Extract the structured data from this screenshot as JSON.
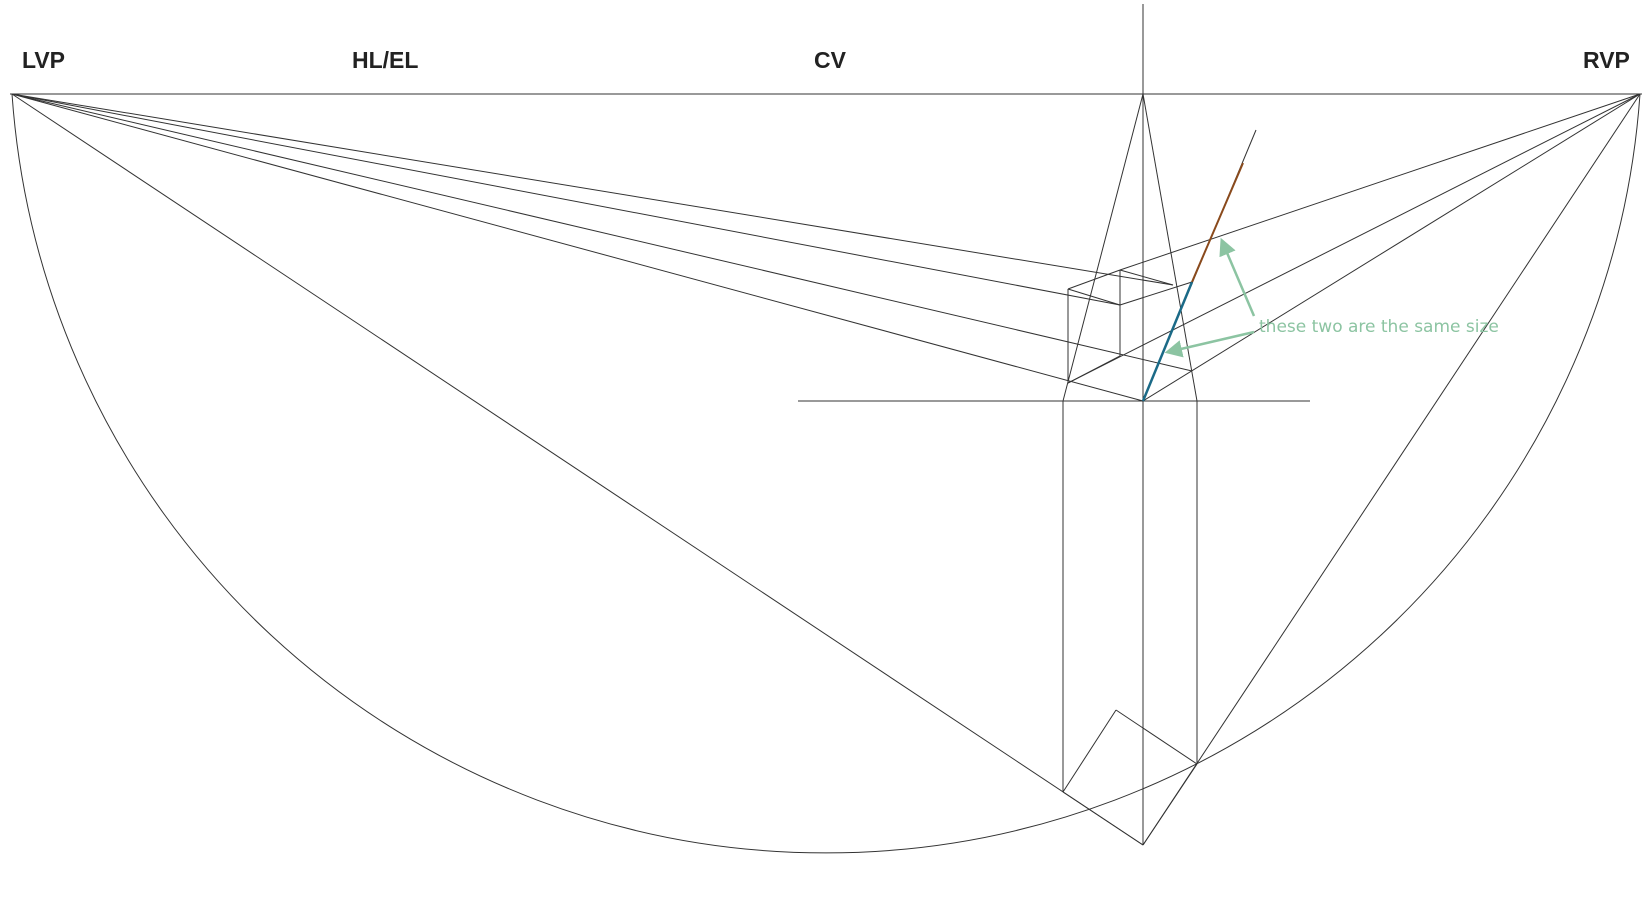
{
  "labels": {
    "lvp": "LVP",
    "hl_el": "HL/EL",
    "cv": "CV",
    "rvp": "RVP"
  },
  "annotation": {
    "text": "these two are the same size"
  },
  "colors": {
    "line": "#333333",
    "annotation": "#8cc4a2",
    "highlight_blue": "#1b6a87",
    "highlight_orange": "#8a4a1c"
  }
}
